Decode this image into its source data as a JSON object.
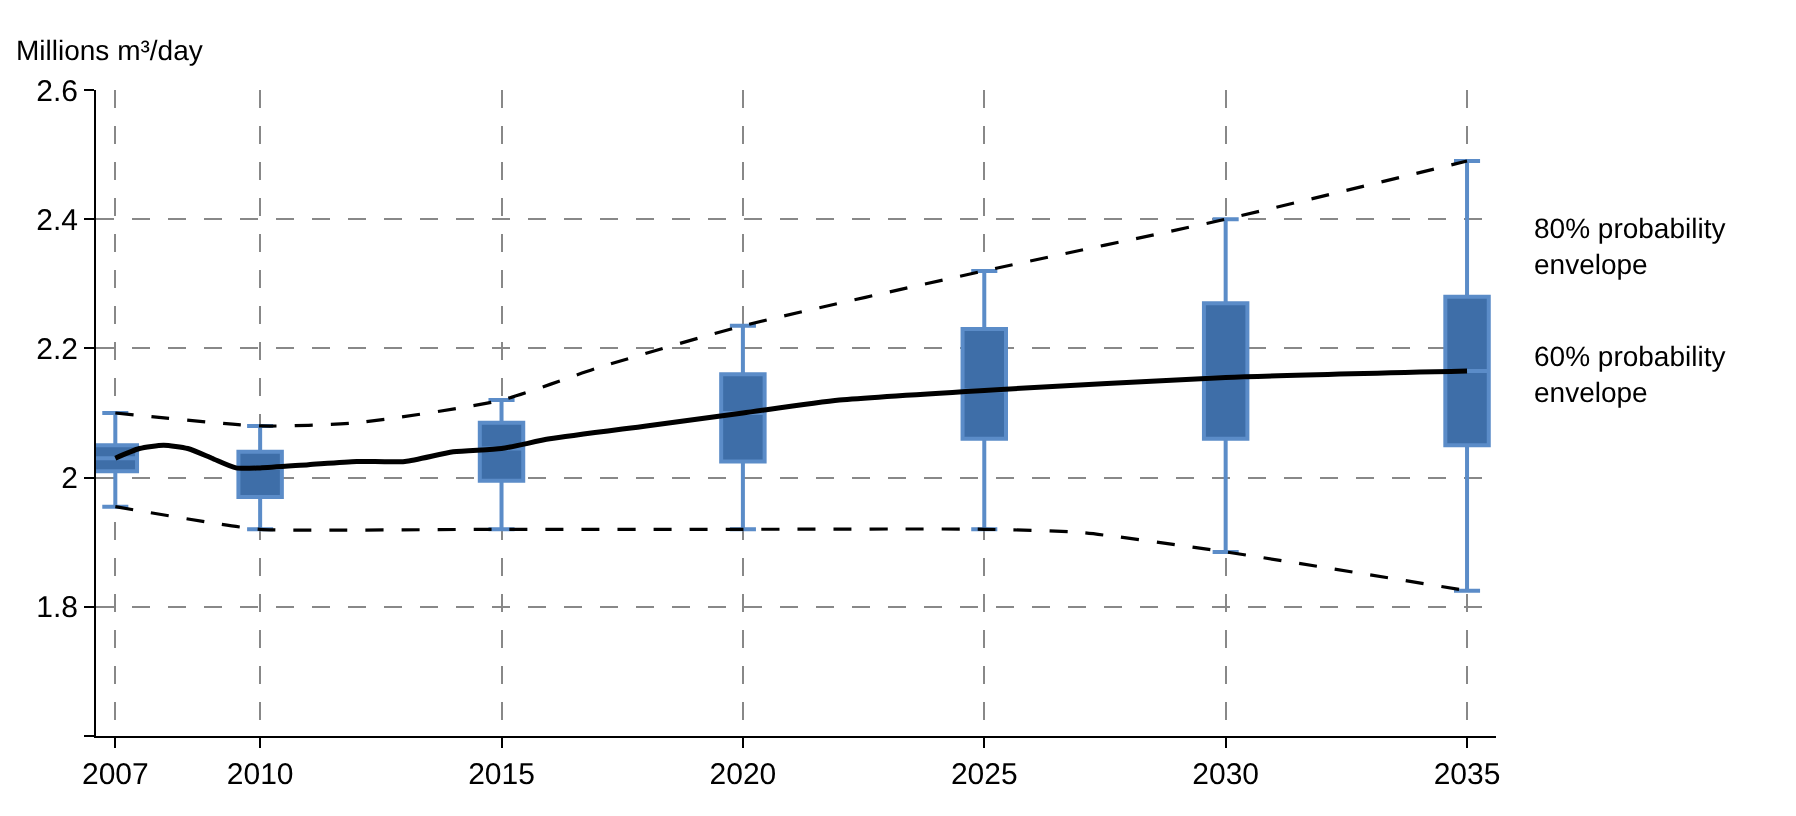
{
  "chart_data": {
    "type": "line",
    "ylabel": "Millions m³/day",
    "xlim": [
      2006.6,
      2035.6
    ],
    "xticks": [
      2007,
      2010,
      2015,
      2020,
      2025,
      2030,
      2035
    ],
    "ylim": [
      1.6,
      2.6
    ],
    "yticks": [
      {
        "value": 1.6,
        "label": null
      },
      1.8,
      {
        "value": 2.0,
        "label": "2"
      },
      2.2,
      2.4,
      2.6
    ],
    "grid": true,
    "marker": "none",
    "series": [
      {
        "color": "#000000",
        "line_style": "solid",
        "x": [
          2007,
          2007.5,
          2008,
          2008.5,
          2009,
          2009.5,
          2010,
          2011,
          2012,
          2013,
          2014,
          2015,
          2016,
          2018,
          2020,
          2022,
          2025,
          2030,
          2035
        ],
        "values": [
          2.03,
          2.045,
          2.05,
          2.045,
          2.03,
          2.015,
          2.015,
          2.02,
          2.025,
          2.025,
          2.04,
          2.045,
          2.06,
          2.08,
          2.1,
          2.12,
          2.135,
          2.155,
          2.165
        ]
      },
      {
        "type": "line",
        "color": "#000000",
        "line_style": "dashed",
        "x": [
          2007,
          2010,
          2012,
          2015,
          2017,
          2020,
          2025,
          2030,
          2035
        ],
        "values": [
          2.1,
          2.08,
          2.085,
          2.12,
          2.17,
          2.235,
          2.32,
          2.4,
          2.49
        ]
      },
      {
        "type": "line",
        "color": "#000000",
        "line_style": "dashed",
        "x": [
          2007,
          2009,
          2010,
          2015,
          2020,
          2025,
          2027,
          2030,
          2035
        ],
        "values": [
          1.955,
          1.93,
          1.92,
          1.92,
          1.92,
          1.92,
          1.915,
          1.885,
          1.825
        ]
      },
      {
        "type": "box",
        "color": "#3e6ea8",
        "x": [
          2007,
          2010,
          2015,
          2020,
          2025,
          2030,
          2035
        ],
        "boxes": [
          {
            "low": 1.955,
            "q1": 2.01,
            "median": 2.03,
            "q3": 2.05,
            "high": 2.1
          },
          {
            "low": 1.92,
            "q1": 1.97,
            "median": 2.015,
            "q3": 2.04,
            "high": 2.08
          },
          {
            "low": 1.92,
            "q1": 1.995,
            "median": 2.045,
            "q3": 2.085,
            "high": 2.12
          },
          {
            "low": 1.92,
            "q1": 2.025,
            "median": 2.1,
            "q3": 2.16,
            "high": 2.235
          },
          {
            "low": 1.92,
            "q1": 2.06,
            "median": 2.135,
            "q3": 2.23,
            "high": 2.32
          },
          {
            "low": 1.885,
            "q1": 2.06,
            "median": 2.155,
            "q3": 2.27,
            "high": 2.4
          },
          {
            "low": 1.825,
            "q1": 2.05,
            "median": 2.165,
            "q3": 2.28,
            "high": 2.49
          }
        ]
      }
    ],
    "annotations": [
      "80% probability\nenvelope",
      "60% probability\nenvelope"
    ]
  }
}
